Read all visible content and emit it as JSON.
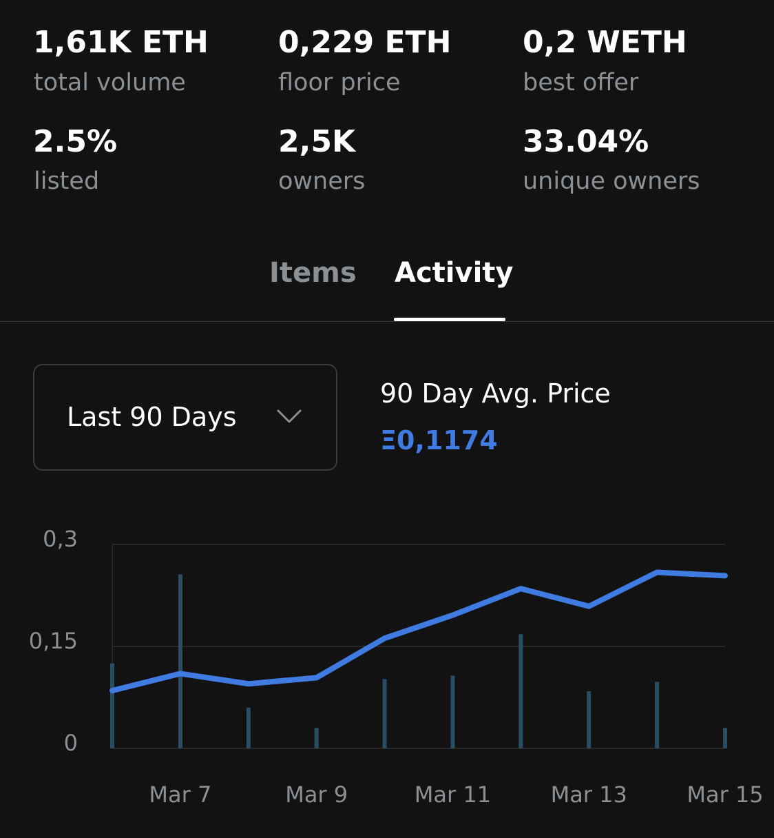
{
  "stats": {
    "total_volume": {
      "value": "1,61K ETH",
      "label": "total volume"
    },
    "floor_price": {
      "value": "0,229 ETH",
      "label": "floor price"
    },
    "best_offer": {
      "value": "0,2 WETH",
      "label": "best offer"
    },
    "listed": {
      "value": "2.5%",
      "label": "listed"
    },
    "owners": {
      "value": "2,5K",
      "label": "owners"
    },
    "unique_owners": {
      "value": "33.04%",
      "label": "unique owners"
    }
  },
  "tabs": {
    "items": "Items",
    "activity": "Activity",
    "active": "activity"
  },
  "range_select": {
    "selected": "Last 90 Days",
    "icon": "chevron-down-icon"
  },
  "avg_price": {
    "title": "90 Day Avg. Price",
    "value": "Ξ0,1174"
  },
  "colors": {
    "background": "#121212",
    "accent": "#3f7be0",
    "muted_text": "#8b9095",
    "volume_bar": "#2a4d63",
    "grid": "#3a3a3c"
  },
  "chart_data": {
    "type": "line",
    "y_ticks": [
      "0,3",
      "0,15",
      "0"
    ],
    "y_tick_values": [
      0.3,
      0.15,
      0
    ],
    "ylim": [
      0,
      0.3
    ],
    "x_tick_labels": [
      "Mar 7",
      "Mar 9",
      "Mar 11",
      "Mar 13",
      "Mar 15"
    ],
    "x": [
      "Mar 6",
      "Mar 7",
      "Mar 8",
      "Mar 9",
      "Mar 10",
      "Mar 11",
      "Mar 12",
      "Mar 13",
      "Mar 14",
      "Mar 15"
    ],
    "series": [
      {
        "values": [
          0.085,
          0.11,
          0.095,
          0.104,
          0.162,
          0.196,
          0.235,
          0.209,
          0.259,
          0.254
        ]
      }
    ],
    "volume_bars": [
      0.125,
      0.256,
      0.06,
      0.03,
      0.102,
      0.107,
      0.168,
      0.084,
      0.098,
      0.03
    ],
    "grid": true,
    "legend": "none"
  }
}
